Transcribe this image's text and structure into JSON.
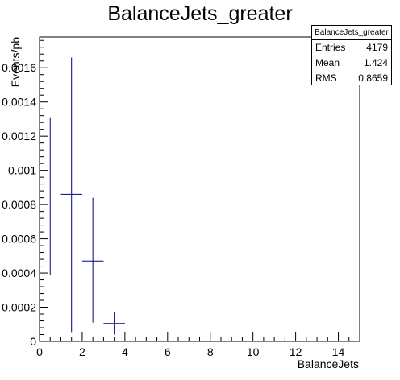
{
  "chart_data": {
    "type": "scatter",
    "title": "BalanceJets_greater",
    "xlabel": "BalanceJets",
    "ylabel": "Events/pb",
    "xlim": [
      0,
      15
    ],
    "ylim": [
      0,
      0.00178
    ],
    "x_ticks": [
      "0",
      "2",
      "4",
      "6",
      "8",
      "10",
      "12",
      "14"
    ],
    "y_ticks": [
      "0",
      "0.0002",
      "0.0004",
      "0.0006",
      "0.0008",
      "0.001",
      "0.0012",
      "0.0014",
      "0.0016"
    ],
    "points": [
      {
        "x": 0.5,
        "y": 0.00085,
        "xerr": 0.5,
        "ylow": 0.00039,
        "yhigh": 0.00131
      },
      {
        "x": 1.5,
        "y": 0.00086,
        "xerr": 0.5,
        "ylow": 5e-05,
        "yhigh": 0.00166
      },
      {
        "x": 2.5,
        "y": 0.00047,
        "xerr": 0.5,
        "ylow": 0.00011,
        "yhigh": 0.00084
      },
      {
        "x": 3.5,
        "y": 0.000105,
        "xerr": 0.5,
        "ylow": 4e-05,
        "yhigh": 0.00017
      }
    ],
    "marker_color": "#000080",
    "grid": false,
    "stats": {
      "name": "BalanceJets_greater",
      "entries_label": "Entries",
      "entries": "4179",
      "mean_label": "Mean",
      "mean": "1.424",
      "rms_label": "RMS",
      "rms": "0.8659"
    }
  }
}
